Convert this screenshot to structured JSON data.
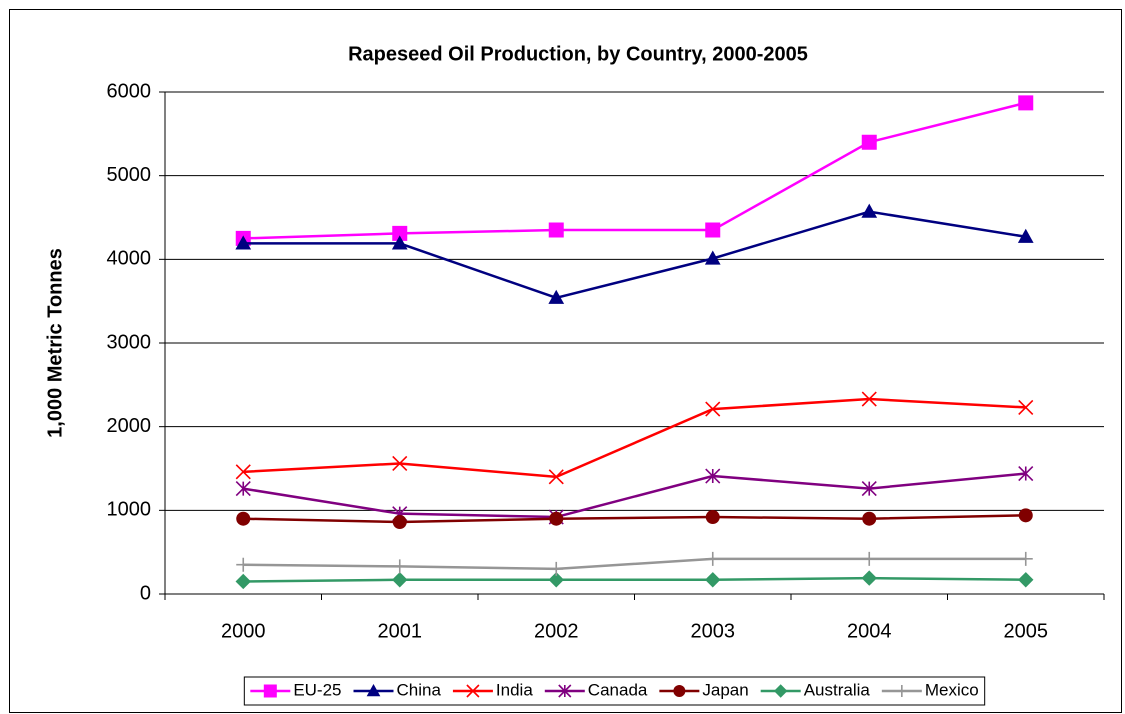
{
  "chart_data": {
    "type": "line",
    "title": "Rapeseed Oil Production, by Country, 2000-2005",
    "y_label": "1,000 Metric Tonnes",
    "categories": [
      "2000",
      "2001",
      "2002",
      "2003",
      "2004",
      "2005"
    ],
    "series": [
      {
        "name": "EU-25",
        "color": "#ff00ff",
        "marker": "square",
        "values": [
          4250,
          4310,
          4350,
          4350,
          5400,
          5870
        ]
      },
      {
        "name": "China",
        "color": "#000080",
        "marker": "triangle",
        "values": [
          4190,
          4190,
          3540,
          4010,
          4570,
          4270
        ]
      },
      {
        "name": "India",
        "color": "#ff0000",
        "marker": "x",
        "values": [
          1460,
          1560,
          1400,
          2210,
          2330,
          2230
        ]
      },
      {
        "name": "Canada",
        "color": "#800080",
        "marker": "asterisk",
        "values": [
          1260,
          960,
          920,
          1410,
          1260,
          1440
        ]
      },
      {
        "name": "Japan",
        "color": "#800000",
        "marker": "circle",
        "values": [
          900,
          860,
          900,
          920,
          900,
          940
        ]
      },
      {
        "name": "Australia",
        "color": "#339966",
        "marker": "diamond",
        "values": [
          150,
          170,
          170,
          170,
          190,
          170
        ]
      },
      {
        "name": "Mexico",
        "color": "#969696",
        "marker": "plus",
        "values": [
          350,
          330,
          300,
          420,
          420,
          420
        ]
      }
    ],
    "ylim": [
      0,
      6000
    ],
    "yticks": [
      0,
      1000,
      2000,
      3000,
      4000,
      5000,
      6000
    ],
    "grid": true,
    "legend": "bottom"
  }
}
